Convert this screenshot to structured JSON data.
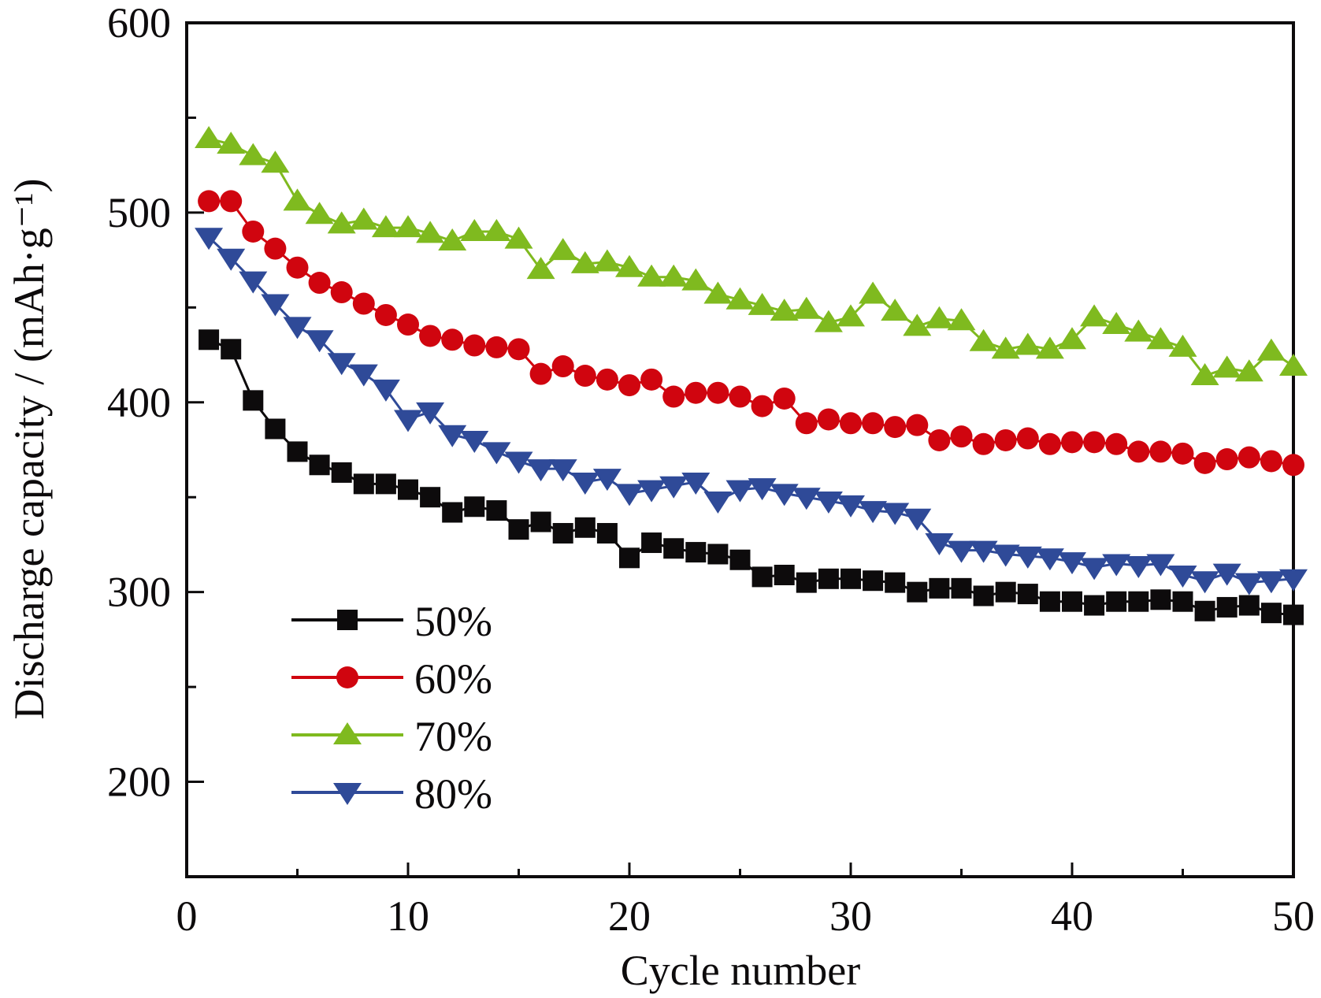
{
  "chart_data": {
    "type": "line",
    "title": "",
    "xlabel": "Cycle number",
    "ylabel": "Discharge capacity / (mAh·g⁻¹)",
    "xlim": [
      0,
      50
    ],
    "ylim": [
      150,
      600
    ],
    "xticks": [
      0,
      10,
      20,
      30,
      40,
      50
    ],
    "xticks_minor": [
      5,
      15,
      25,
      35,
      45
    ],
    "yticks": [
      200,
      300,
      400,
      500,
      600
    ],
    "yticks_minor": [
      250,
      350,
      450,
      550
    ],
    "xtick_labels": [
      "0",
      "10",
      "20",
      "30",
      "40",
      "50"
    ],
    "ytick_labels": [
      "200",
      "300",
      "400",
      "500",
      "600"
    ],
    "grid": false,
    "legend_position": "bottom-left",
    "x": [
      1,
      2,
      3,
      4,
      5,
      6,
      7,
      8,
      9,
      10,
      11,
      12,
      13,
      14,
      15,
      16,
      17,
      18,
      19,
      20,
      21,
      22,
      23,
      24,
      25,
      26,
      27,
      28,
      29,
      30,
      31,
      32,
      33,
      34,
      35,
      36,
      37,
      38,
      39,
      40,
      41,
      42,
      43,
      44,
      45,
      46,
      47,
      48,
      49,
      50
    ],
    "series": [
      {
        "name": "50%",
        "color": "#0d0b0c",
        "marker": "square",
        "values": [
          433,
          428,
          401,
          386,
          374,
          367,
          363,
          357,
          357,
          354,
          350,
          342,
          345,
          343,
          333,
          337,
          331,
          334,
          331,
          318,
          326,
          323,
          321,
          320,
          317,
          308,
          309,
          305,
          307,
          307,
          306,
          305,
          300,
          302,
          302,
          298,
          300,
          299,
          295,
          295,
          293,
          295,
          295,
          296,
          295,
          290,
          292,
          293,
          289,
          288
        ]
      },
      {
        "name": "60%",
        "color": "#d0050f",
        "marker": "circle",
        "values": [
          506,
          506,
          490,
          481,
          471,
          463,
          458,
          452,
          446,
          441,
          435,
          433,
          430,
          429,
          428,
          415,
          419,
          414,
          412,
          409,
          412,
          403,
          405,
          405,
          403,
          398,
          402,
          389,
          391,
          389,
          389,
          387,
          388,
          380,
          382,
          378,
          380,
          381,
          378,
          379,
          379,
          378,
          374,
          374,
          373,
          368,
          370,
          371,
          369,
          367
        ]
      },
      {
        "name": "70%",
        "color": "#7fba1f",
        "marker": "triangle-up",
        "values": [
          539,
          536,
          530,
          526,
          506,
          499,
          494,
          496,
          492,
          492,
          489,
          485,
          490,
          490,
          486,
          470,
          480,
          473,
          474,
          471,
          466,
          466,
          464,
          457,
          454,
          451,
          448,
          449,
          442,
          445,
          457,
          448,
          440,
          444,
          443,
          432,
          428,
          430,
          428,
          433,
          445,
          441,
          437,
          433,
          429,
          414,
          418,
          416,
          427,
          419
        ]
      },
      {
        "name": "80%",
        "color": "#2f4a98",
        "marker": "triangle-down",
        "values": [
          487,
          476,
          464,
          452,
          440,
          433,
          421,
          415,
          407,
          391,
          395,
          383,
          380,
          374,
          369,
          365,
          365,
          358,
          360,
          352,
          354,
          356,
          358,
          348,
          354,
          355,
          352,
          350,
          348,
          346,
          343,
          342,
          339,
          326,
          322,
          322,
          320,
          319,
          318,
          316,
          313,
          315,
          314,
          315,
          309,
          306,
          310,
          305,
          306,
          307
        ]
      }
    ]
  }
}
